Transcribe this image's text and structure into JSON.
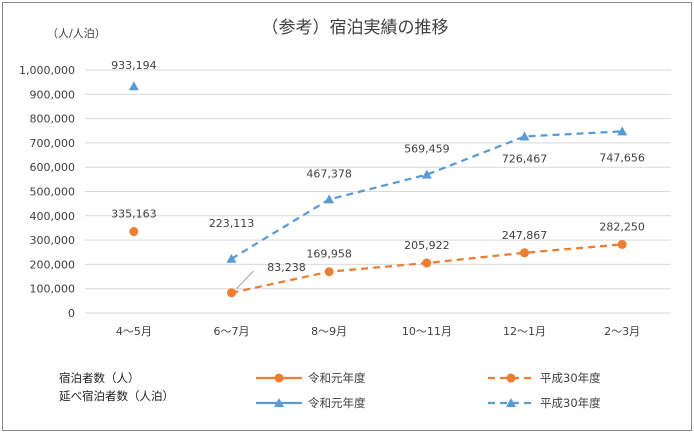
{
  "chart_data": {
    "type": "line",
    "title": "（参考）宿泊実績の推移",
    "ylabel": "（人/人泊）",
    "ylim": [
      0,
      1000000
    ],
    "yticks": [
      0,
      100000,
      200000,
      300000,
      400000,
      500000,
      600000,
      700000,
      800000,
      900000,
      1000000
    ],
    "ytick_labels": [
      "0",
      "100,000",
      "200,000",
      "300,000",
      "400,000",
      "500,000",
      "600,000",
      "700,000",
      "800,000",
      "900,000",
      "1,000,000"
    ],
    "categories": [
      "4～5月",
      "6～7月",
      "8～9月",
      "10～11月",
      "12～1月",
      "2～3月"
    ],
    "grid": true,
    "legend_position": "bottom",
    "legend_groups": [
      {
        "label": "宿泊者数（人）"
      },
      {
        "label": "延べ宿泊者数（人泊）"
      }
    ],
    "series": [
      {
        "name": "令和元年度",
        "group": 0,
        "marker": "circle",
        "line": "solid",
        "color": "#ED7D31",
        "values": [
          335163,
          null,
          null,
          null,
          null,
          null
        ],
        "labels": [
          "335,163",
          null,
          null,
          null,
          null,
          null
        ]
      },
      {
        "name": "平成30年度",
        "group": 0,
        "marker": "circle",
        "line": "dashed",
        "color": "#ED7D31",
        "values": [
          null,
          83238,
          169958,
          205922,
          247867,
          282250
        ],
        "labels": [
          null,
          "83,238",
          "169,958",
          "205,922",
          "247,867",
          "282,250"
        ]
      },
      {
        "name": "令和元年度",
        "group": 1,
        "marker": "triangle",
        "line": "solid",
        "color": "#5B9BD5",
        "values": [
          933194,
          null,
          null,
          null,
          null,
          null
        ],
        "labels": [
          "933,194",
          null,
          null,
          null,
          null,
          null
        ]
      },
      {
        "name": "平成30年度",
        "group": 1,
        "marker": "triangle",
        "line": "dashed",
        "color": "#5B9BD5",
        "values": [
          null,
          223113,
          467378,
          569459,
          726467,
          747656
        ],
        "labels": [
          null,
          "223,113",
          "467,378",
          "569,459",
          "726,467",
          "747,656"
        ]
      }
    ]
  }
}
